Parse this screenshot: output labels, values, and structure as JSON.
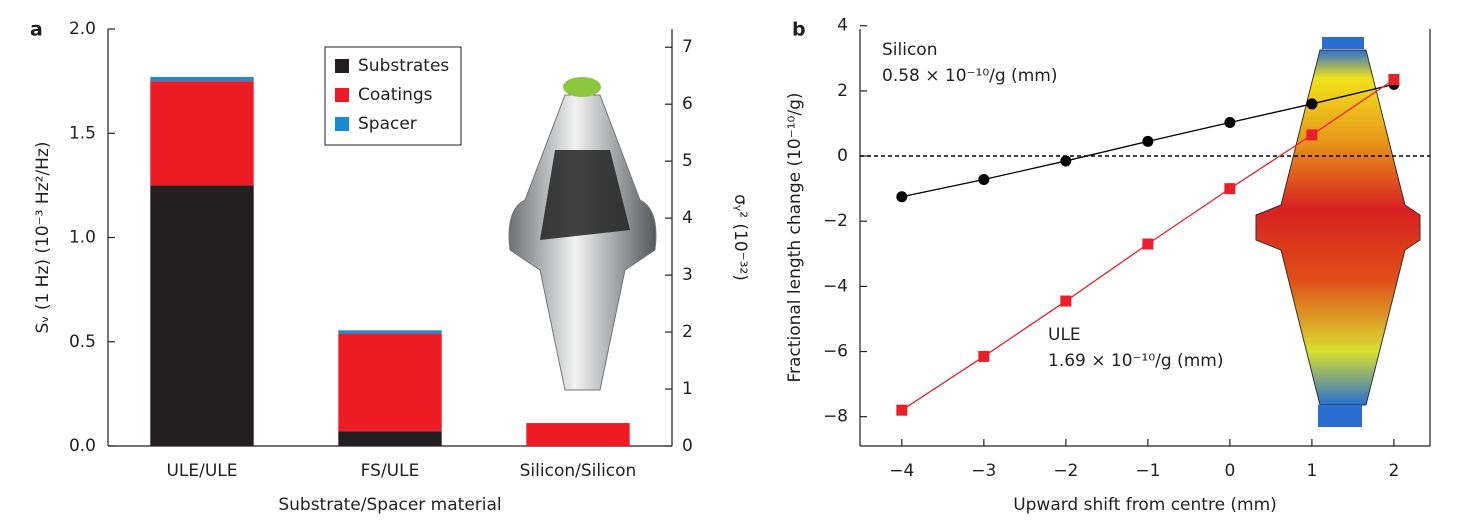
{
  "chart_data": [
    {
      "type": "bar",
      "stacked": true,
      "panel_label": "a",
      "ylabel": "Sᵥ (1 Hz) (10⁻³ Hz²/Hz)",
      "y2label": "σᵧ² (10⁻³²)",
      "xlabel": "Substrate/Spacer material",
      "categories": [
        "ULE/ULE",
        "FS/ULE",
        "Silicon/Silicon"
      ],
      "series": [
        {
          "name": "Substrates",
          "color": "#231f20",
          "values": [
            1.25,
            0.07,
            0.0
          ]
        },
        {
          "name": "Coatings",
          "color": "#ed1c24",
          "values": [
            0.5,
            0.47,
            0.11
          ]
        },
        {
          "name": "Spacer",
          "color": "#1a8bd0",
          "values": [
            0.02,
            0.015,
            0.0
          ]
        }
      ],
      "ylim": [
        0,
        2
      ],
      "yticks": [
        {
          "value": 0,
          "label": "0.0"
        },
        0.5,
        {
          "value": 1,
          "label": "1.0"
        },
        1.5,
        {
          "value": 2,
          "label": "2.0"
        }
      ],
      "y2lim": [
        0,
        7.32
      ],
      "y2ticks": [
        0,
        1,
        2,
        3,
        4,
        5,
        6,
        7
      ],
      "legend": "upper center"
    },
    {
      "type": "line",
      "panel_label": "b",
      "ylabel": "Fractional length change (10⁻¹⁰/g)",
      "xlabel": "Upward shift from centre (mm)",
      "x": [
        -4,
        -3,
        -2,
        -1,
        0,
        1,
        2
      ],
      "series": [
        {
          "name": "Silicon",
          "slope_label": "0.58 × 10⁻¹⁰/g (mm)",
          "color": "#000000",
          "marker": "circle",
          "values": [
            -1.25,
            -0.72,
            -0.15,
            0.45,
            1.03,
            1.6,
            2.2
          ]
        },
        {
          "name": "ULE",
          "slope_label": "1.69 × 10⁻¹⁰/g (mm)",
          "color": "#e8202a",
          "marker": "square",
          "values": [
            -7.8,
            -6.15,
            -4.45,
            -2.7,
            -1.0,
            0.65,
            2.35
          ]
        }
      ],
      "xlim": [
        -4.51,
        2.44
      ],
      "xticks": [
        {
          "value": -4,
          "label": "−4"
        },
        {
          "value": -3,
          "label": "−3"
        },
        {
          "value": -2,
          "label": "−2"
        },
        {
          "value": -1,
          "label": "−1"
        },
        0,
        1,
        2
      ],
      "ylim": [
        -8.9,
        3.9
      ],
      "yticks": [
        {
          "value": -8,
          "label": "−8"
        },
        {
          "value": -6,
          "label": "−6"
        },
        {
          "value": -4,
          "label": "−4"
        },
        {
          "value": -2,
          "label": "−2"
        },
        0,
        2,
        4
      ],
      "zero_line": true
    }
  ]
}
